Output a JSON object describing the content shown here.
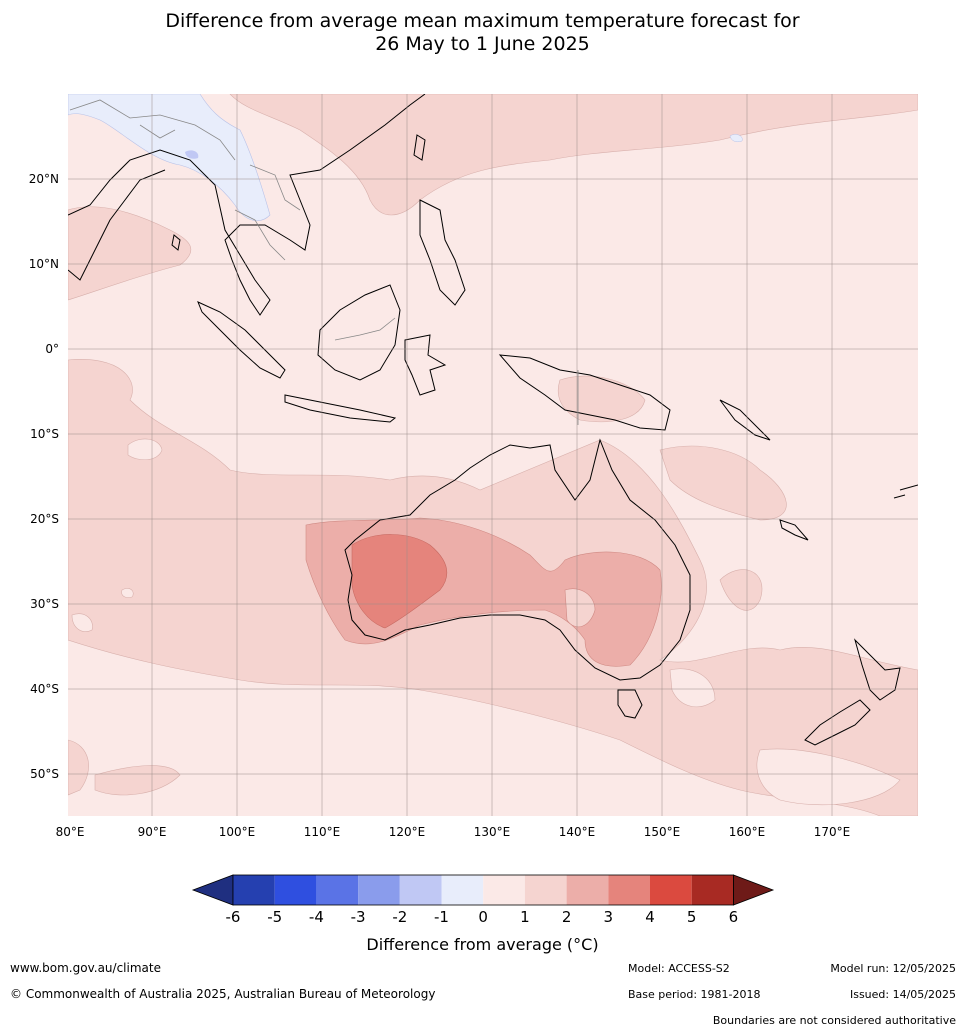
{
  "title": {
    "line1": "Difference from average mean maximum temperature forecast for",
    "line2": "26 May to 1 June 2025"
  },
  "map": {
    "lon_range": [
      80,
      180
    ],
    "lat_range": [
      -55,
      30
    ],
    "lon_ticks": [
      "80°E",
      "90°E",
      "100°E",
      "110°E",
      "120°E",
      "130°E",
      "140°E",
      "150°E",
      "160°E",
      "170°E"
    ],
    "lat_ticks": [
      "20°N",
      "10°N",
      "0°",
      "10°S",
      "20°S",
      "30°S",
      "40°S",
      "50°S"
    ],
    "grid": true,
    "colors": {
      "neg1_0": "#e8edfb",
      "zero_1": "#fbe9e7",
      "one_2": "#f5d4d0",
      "two_3": "#ecaea9",
      "three_4": "#e5847c",
      "coast": "#000000",
      "border": "#888888"
    }
  },
  "colorbar": {
    "ticks": [
      "-6",
      "-5",
      "-4",
      "-3",
      "-2",
      "-1",
      "0",
      "1",
      "2",
      "3",
      "4",
      "5",
      "6"
    ],
    "colors": [
      "#1f2f80",
      "#2540b0",
      "#2f4fe0",
      "#5a73e6",
      "#8a9cec",
      "#c0c8f4",
      "#e8edfb",
      "#fbe9e7",
      "#f5d4d0",
      "#ecaea9",
      "#e5847c",
      "#db4a3f",
      "#a82a23",
      "#6e1a18"
    ],
    "label": "Difference from average (°C)"
  },
  "footer": {
    "website": "www.bom.gov.au/climate",
    "copyright": "© Commonwealth of Australia 2025, Australian Bureau of Meteorology",
    "model": "Model: ACCESS-S2",
    "base_period": "Base period: 1981-2018",
    "model_run": "Model run: 12/05/2025",
    "issued": "Issued: 14/05/2025",
    "disclaimer": "Boundaries are not considered authoritative"
  }
}
